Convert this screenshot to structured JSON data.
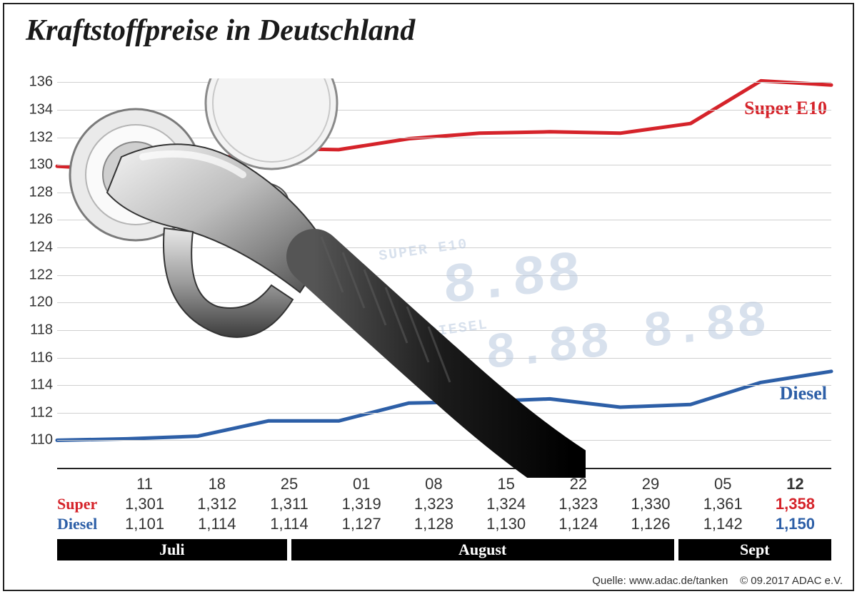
{
  "title": "Kraftstoffpreise in Deutschland",
  "title_fontsize": 42,
  "chart": {
    "type": "line",
    "ylim": [
      108,
      137
    ],
    "ytick_start": 110,
    "ytick_end": 136,
    "ytick_step": 2,
    "grid_color": "#d0d0d0",
    "axis_color": "#222222",
    "background_color": "#ffffff",
    "x_dates": [
      "11",
      "18",
      "25",
      "01",
      "08",
      "15",
      "22",
      "29",
      "05",
      "12"
    ],
    "x_date_bold_index": 9,
    "series": [
      {
        "name": "Super E10",
        "label": "Super E10",
        "label_color": "#d5232a",
        "line_color": "#d5232a",
        "line_width": 5,
        "y": [
          129.9,
          129.6,
          130.1,
          131.2,
          131.1,
          131.9,
          132.3,
          132.4,
          132.3,
          133.0,
          136.1,
          135.8
        ]
      },
      {
        "name": "Diesel",
        "label": "Diesel",
        "label_color": "#2d5fa7",
        "line_color": "#2d5fa7",
        "line_width": 5,
        "y": [
          110.0,
          110.1,
          110.3,
          111.4,
          111.4,
          112.7,
          112.8,
          113.0,
          112.4,
          112.6,
          114.2,
          115.0
        ]
      }
    ]
  },
  "table": {
    "date_labels": [
      "11",
      "18",
      "25",
      "01",
      "08",
      "15",
      "22",
      "29",
      "05",
      "12"
    ],
    "last_bold": true,
    "rows": [
      {
        "label": "Super",
        "label_color": "#d5232a",
        "values": [
          "1,301",
          "1,312",
          "1,311",
          "1,319",
          "1,323",
          "1,324",
          "1,323",
          "1,330",
          "1,361",
          "1,358"
        ],
        "last_color": "#d5232a"
      },
      {
        "label": "Diesel",
        "label_color": "#2d5fa7",
        "values": [
          "1,101",
          "1,114",
          "1,114",
          "1,127",
          "1,128",
          "1,130",
          "1,124",
          "1,126",
          "1,142",
          "1,150"
        ],
        "last_color": "#2d5fa7"
      }
    ]
  },
  "months": [
    {
      "label": "Juli",
      "span": 3
    },
    {
      "label": "August",
      "span": 5
    },
    {
      "label": "Sept",
      "span": 2
    }
  ],
  "footer": {
    "source_label": "Quelle:",
    "source_url": "www.adac.de/tanken",
    "copyright": "© 09.2017  ADAC e.V."
  },
  "decor": {
    "digital_labels": [
      "SUPER E10",
      "DIESEL"
    ],
    "digital_glyph": "8.88",
    "digital_color": "#b9c9df"
  }
}
